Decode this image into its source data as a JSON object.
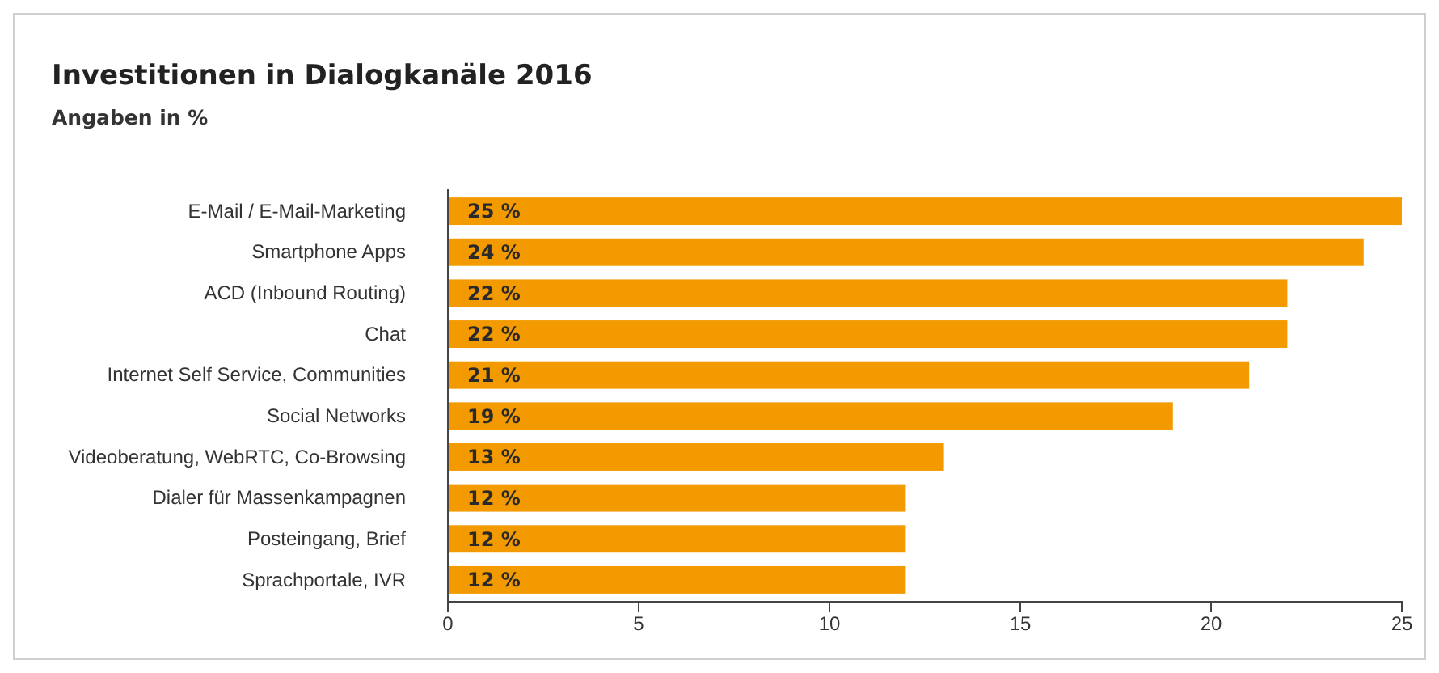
{
  "chart_data": {
    "type": "bar",
    "orientation": "horizontal",
    "title": "Investitionen in Dialogkanäle 2016",
    "subtitle": "Angaben in %",
    "categories": [
      "E-Mail / E-Mail-Marketing",
      "Smartphone Apps",
      "ACD (Inbound Routing)",
      "Chat",
      "Internet Self Service, Communities",
      "Social Networks",
      "Videoberatung, WebRTC, Co-Browsing",
      "Dialer für Massenkampagnen",
      "Posteingang, Brief",
      "Sprachportale, IVR"
    ],
    "values": [
      25,
      24,
      22,
      22,
      21,
      19,
      13,
      12,
      12,
      12
    ],
    "value_labels": [
      "25 %",
      "24 %",
      "22 %",
      "22 %",
      "21 %",
      "19 %",
      "13 %",
      "12 %",
      "12 %",
      "12 %"
    ],
    "color": "#f39a00",
    "xlim": [
      0,
      25
    ],
    "xticks": [
      0,
      5,
      10,
      15,
      20,
      25
    ],
    "grid": false
  }
}
